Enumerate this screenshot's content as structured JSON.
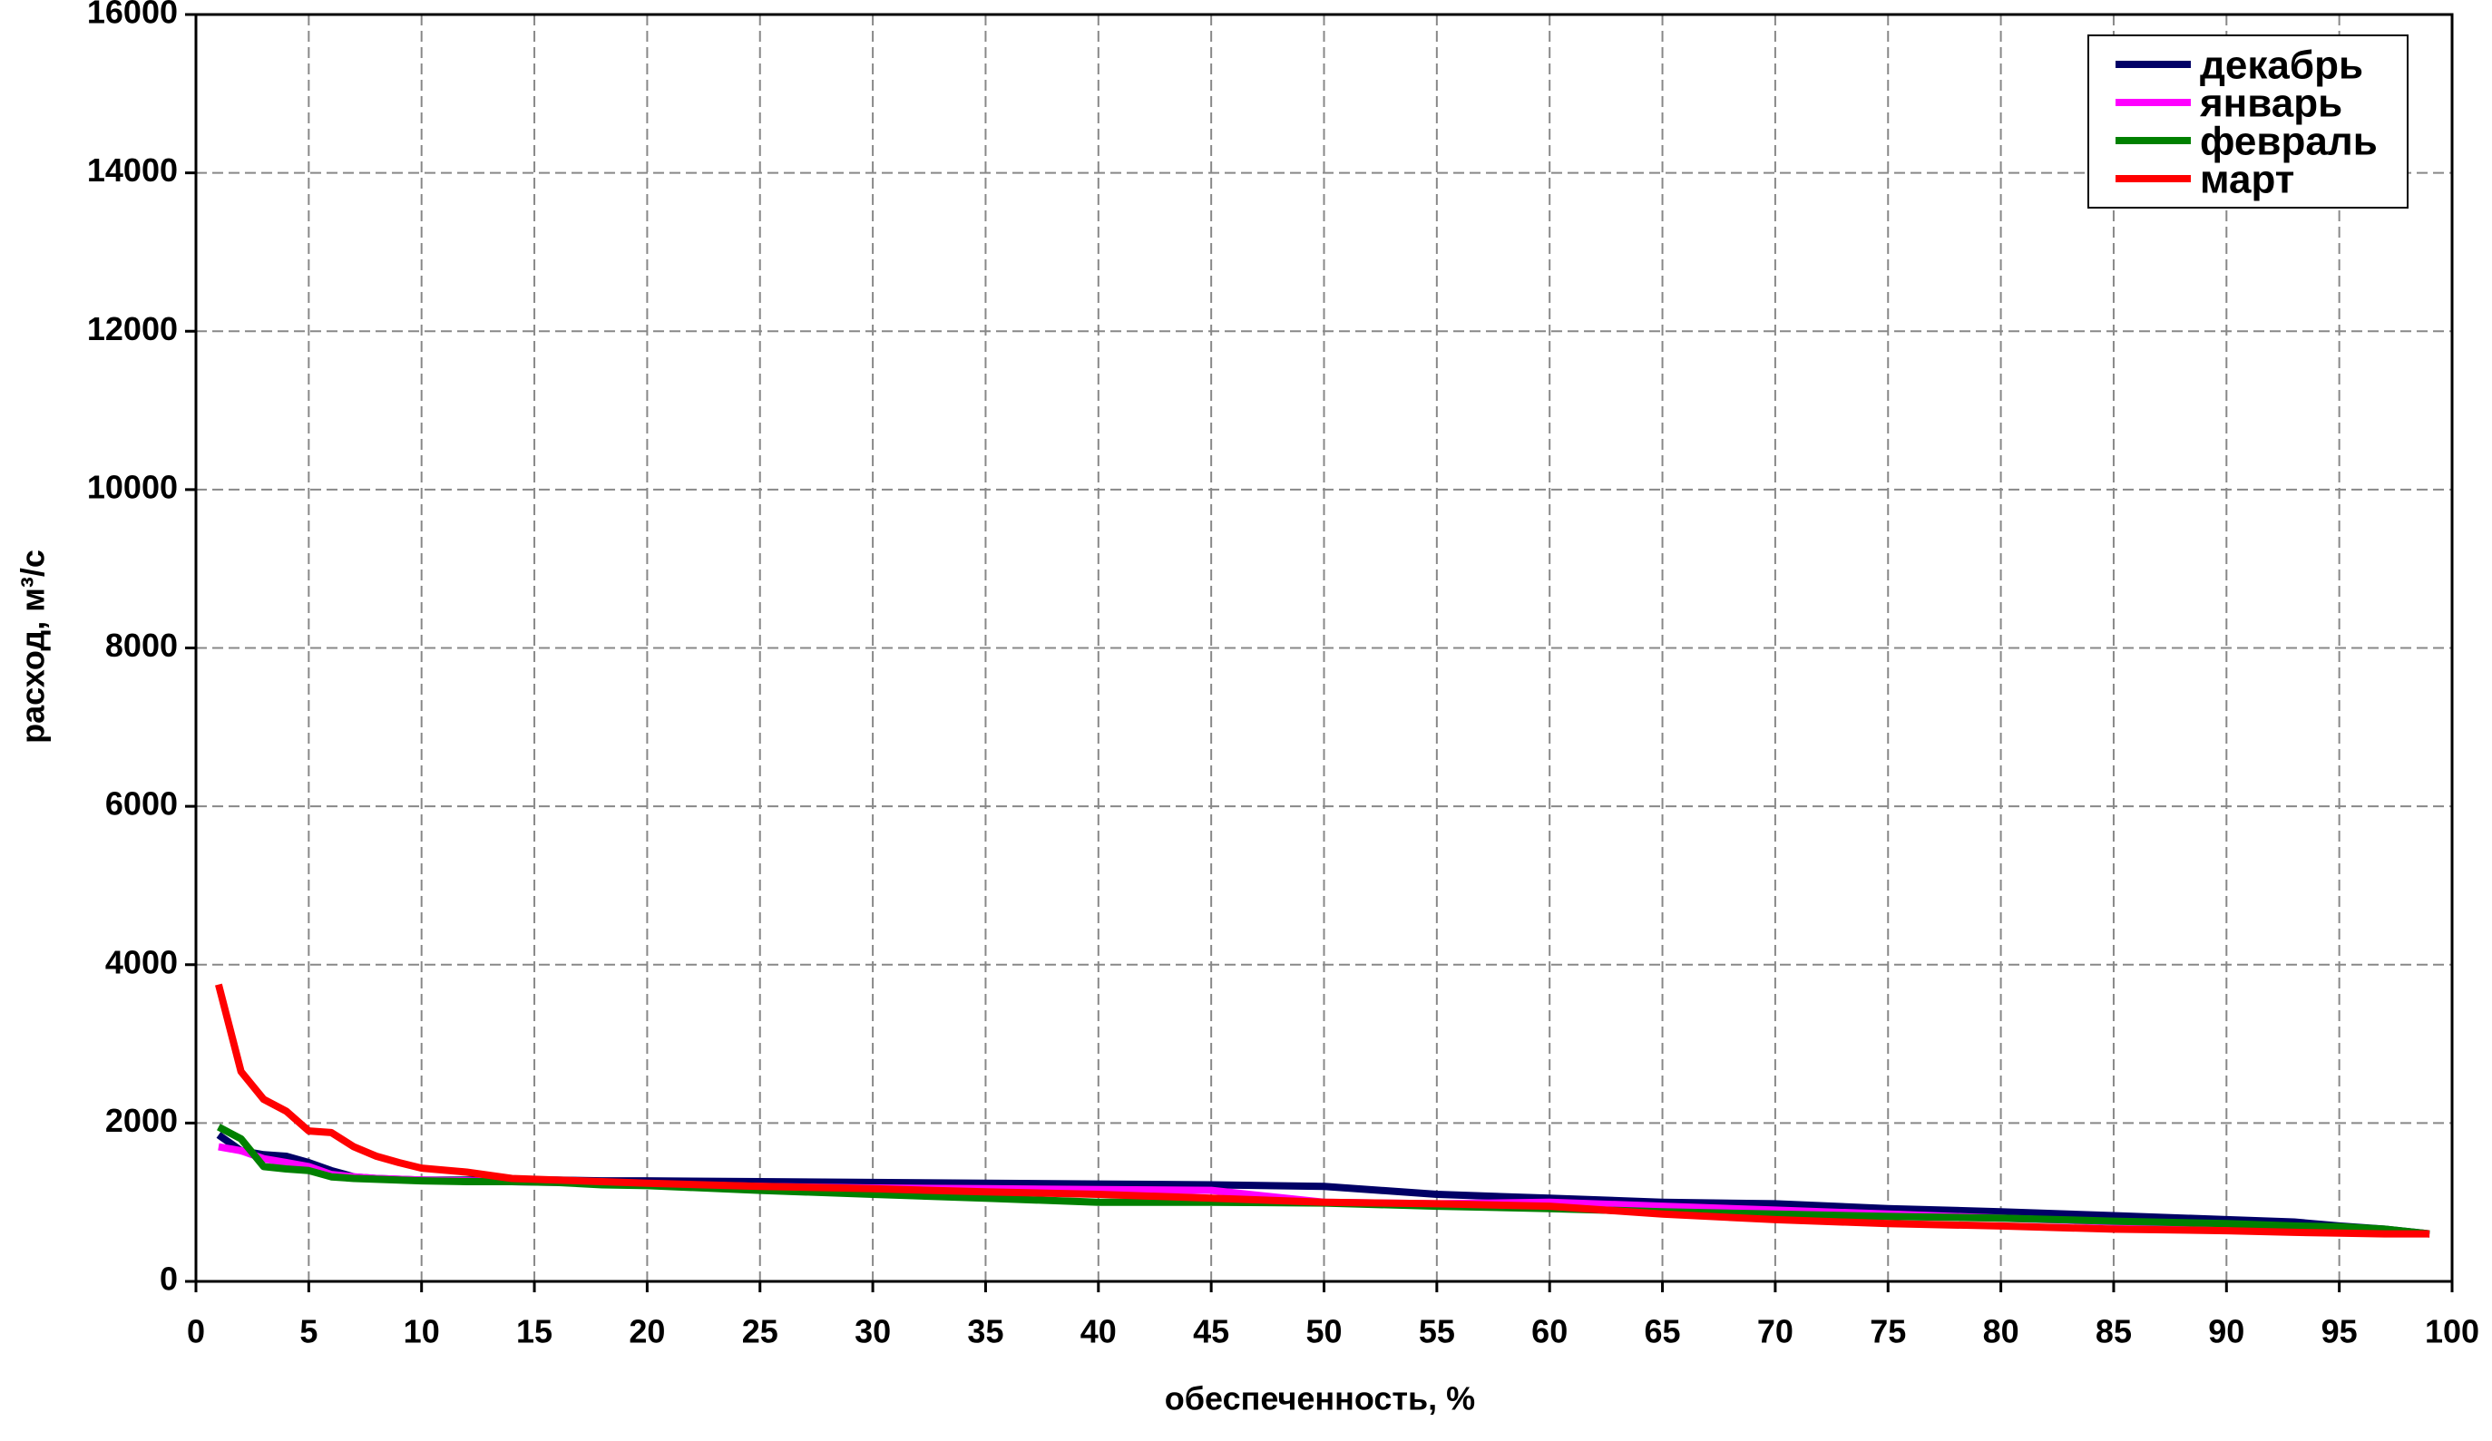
{
  "chart_data": {
    "type": "line",
    "x_label": "обеспеченность, %",
    "y_label": "расход, м³/с",
    "x": [
      1,
      2,
      3,
      4,
      5,
      6,
      7,
      8,
      9,
      10,
      12,
      14,
      16,
      18,
      20,
      25,
      30,
      35,
      40,
      45,
      50,
      55,
      60,
      65,
      70,
      75,
      80,
      85,
      90,
      93,
      95,
      97,
      99
    ],
    "series": [
      {
        "name": "декабрь",
        "color": "#000066",
        "values": [
          1850,
          1650,
          1600,
          1580,
          1500,
          1400,
          1320,
          1300,
          1290,
          1280,
          1280,
          1280,
          1280,
          1270,
          1270,
          1260,
          1250,
          1240,
          1230,
          1220,
          1200,
          1100,
          1050,
          1000,
          980,
          920,
          880,
          830,
          780,
          750,
          700,
          660,
          600
        ]
      },
      {
        "name": "январь",
        "color": "#ff00ff",
        "values": [
          1700,
          1650,
          1550,
          1500,
          1450,
          1350,
          1320,
          1300,
          1290,
          1280,
          1270,
          1260,
          1250,
          1240,
          1230,
          1200,
          1180,
          1170,
          1160,
          1150,
          1000,
          980,
          1000,
          950,
          900,
          850,
          800,
          750,
          720,
          690,
          670,
          650,
          600
        ]
      },
      {
        "name": "февраль",
        "color": "#008000",
        "values": [
          1950,
          1800,
          1450,
          1420,
          1400,
          1320,
          1300,
          1290,
          1280,
          1270,
          1260,
          1260,
          1250,
          1220,
          1210,
          1150,
          1100,
          1050,
          1000,
          1000,
          990,
          950,
          920,
          880,
          850,
          820,
          800,
          760,
          730,
          700,
          690,
          660,
          600
        ]
      },
      {
        "name": "март",
        "color": "#ff0000",
        "values": [
          3750,
          2650,
          2300,
          2150,
          1900,
          1880,
          1700,
          1580,
          1500,
          1430,
          1380,
          1300,
          1280,
          1260,
          1240,
          1200,
          1170,
          1130,
          1100,
          1050,
          1000,
          980,
          950,
          850,
          780,
          730,
          700,
          660,
          640,
          620,
          610,
          600,
          600
        ]
      }
    ],
    "xlim": [
      0,
      100
    ],
    "xticks": [
      0,
      5,
      10,
      15,
      20,
      25,
      30,
      35,
      40,
      45,
      50,
      55,
      60,
      65,
      70,
      75,
      80,
      85,
      90,
      95,
      100
    ],
    "ylim": [
      0,
      16000
    ],
    "yticks": [
      0,
      2000,
      4000,
      6000,
      8000,
      10000,
      12000,
      14000,
      16000
    ],
    "grid": true,
    "legend": "upper right"
  }
}
